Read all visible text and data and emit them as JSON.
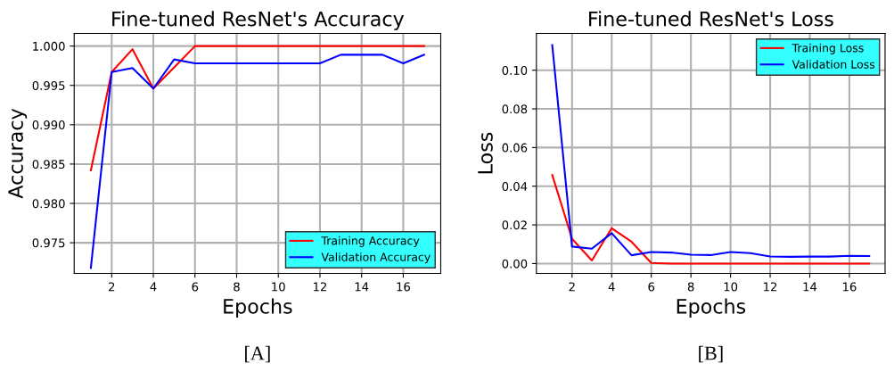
{
  "chart_data": [
    {
      "type": "line",
      "title": "Fine-tuned ResNet's Accuracy",
      "xlabel": "Epochs",
      "ylabel": "Accuracy",
      "x": [
        1,
        2,
        3,
        4,
        5,
        6,
        7,
        8,
        9,
        10,
        11,
        12,
        13,
        14,
        15,
        16,
        17
      ],
      "series": [
        {
          "name": "Training Accuracy",
          "color": "#ff0000",
          "values": [
            0.9842,
            0.9967,
            0.9996,
            0.9946,
            0.9973,
            1.0,
            1.0,
            1.0,
            1.0,
            1.0,
            1.0,
            1.0,
            1.0,
            1.0,
            1.0,
            1.0,
            1.0
          ]
        },
        {
          "name": "Validation Accuracy",
          "color": "#0000ff",
          "values": [
            0.9718,
            0.9967,
            0.9972,
            0.9946,
            0.9983,
            0.9978,
            0.9978,
            0.9978,
            0.9978,
            0.9978,
            0.9978,
            0.9978,
            0.9989,
            0.9989,
            0.9989,
            0.9978,
            0.9989
          ]
        }
      ],
      "xlim": [
        0.2,
        17.8
      ],
      "xticks": [
        2,
        4,
        6,
        8,
        10,
        12,
        14,
        16
      ],
      "ylim": [
        0.9711,
        1.0016
      ],
      "yticks": [
        0.975,
        {
          "value": 0.98,
          "label": "0.980"
        },
        0.985,
        {
          "value": 0.99,
          "label": "0.990"
        },
        0.995,
        {
          "value": 1.0,
          "label": "1.000"
        }
      ],
      "grid": true,
      "legend": "bottom right",
      "annotations": [
        "[A]"
      ]
    },
    {
      "type": "line",
      "title": "Fine-tuned ResNet's Loss",
      "xlabel": "Epochs",
      "ylabel": "Loss",
      "x": [
        1,
        2,
        3,
        4,
        5,
        6,
        7,
        8,
        9,
        10,
        11,
        12,
        13,
        14,
        15,
        16,
        17
      ],
      "series": [
        {
          "name": "Training Loss",
          "color": "#ff0000",
          "values": [
            0.0458,
            0.0128,
            0.0016,
            0.0183,
            0.0113,
            0.0003,
            0.0,
            0.0,
            0.0,
            0.0,
            0.0,
            0.0,
            0.0,
            0.0,
            0.0,
            0.0,
            0.0
          ]
        },
        {
          "name": "Validation Loss",
          "color": "#0000ff",
          "values": [
            0.113,
            0.0088,
            0.0077,
            0.0157,
            0.0043,
            0.006,
            0.0057,
            0.0046,
            0.0044,
            0.006,
            0.0054,
            0.0037,
            0.0035,
            0.0036,
            0.0036,
            0.004,
            0.0039
          ]
        }
      ],
      "xlim": [
        0.2,
        17.8
      ],
      "xticks": [
        2,
        4,
        6,
        8,
        10,
        12,
        14,
        16
      ],
      "ylim": [
        -0.0051,
        0.119
      ],
      "yticks": [
        {
          "value": 0.0,
          "label": "0.00"
        },
        {
          "value": 0.02,
          "label": "0.02"
        },
        {
          "value": 0.04,
          "label": "0.04"
        },
        {
          "value": 0.06,
          "label": "0.06"
        },
        {
          "value": 0.08,
          "label": "0.08"
        },
        {
          "value": 0.1,
          "label": "0.10"
        }
      ],
      "grid": true,
      "legend": "top right",
      "annotations": [
        "[B]"
      ]
    }
  ]
}
